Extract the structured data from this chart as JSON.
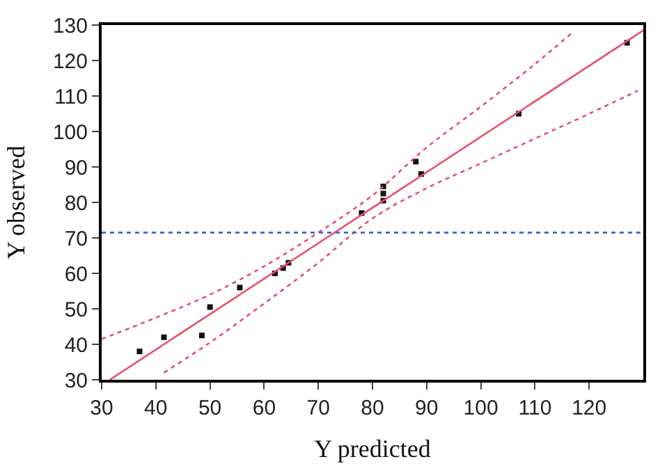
{
  "chart_data": {
    "type": "scatter",
    "xlabel": "Y predicted",
    "ylabel": "Y observed",
    "xlim": [
      30,
      130
    ],
    "ylim": [
      30,
      130
    ],
    "xticks": [
      30,
      40,
      50,
      60,
      70,
      80,
      90,
      100,
      110,
      {
        "value": 120,
        "label": "120"
      }
    ],
    "yticks": [
      30,
      40,
      50,
      60,
      70,
      80,
      90,
      100,
      110,
      120,
      130
    ],
    "series": [
      {
        "color": "#111111",
        "marker": "square",
        "x": [
          37,
          41.5,
          48.5,
          50,
          55.5,
          62,
          63.5,
          64.5,
          78,
          82,
          82,
          82,
          88,
          89,
          107,
          127
        ],
        "values": [
          38,
          42,
          42.5,
          50.5,
          56,
          60,
          61.5,
          63,
          77,
          84.5,
          82.5,
          80.5,
          91.5,
          88,
          105,
          125
        ]
      },
      {
        "type": "line",
        "color": "#e8506a",
        "line_style": "solid",
        "marker": "none",
        "x": [
          31.5,
          130
        ],
        "values": [
          30,
          128.5
        ]
      },
      {
        "type": "line",
        "color": "#e8506a",
        "line_style": "dotted",
        "marker": "none",
        "x": [
          30,
          40,
          50,
          60,
          70,
          80,
          90,
          100,
          110,
          117
        ],
        "values": [
          41.5,
          47.5,
          54,
          62,
          71.5,
          82,
          95.5,
          107,
          119,
          128
        ]
      },
      {
        "type": "line",
        "color": "#e8506a",
        "line_style": "dotted",
        "marker": "none",
        "x": [
          41.5,
          50,
          60,
          70,
          80,
          90,
          100,
          110,
          120,
          129
        ],
        "values": [
          32,
          40.5,
          51.5,
          63,
          75.5,
          84,
          91,
          98,
          105,
          111.5
        ]
      }
    ],
    "ref_lines": [
      {
        "axis": "y",
        "value": 71.5,
        "color": "#3366dd",
        "line_style": "dotted"
      }
    ]
  }
}
